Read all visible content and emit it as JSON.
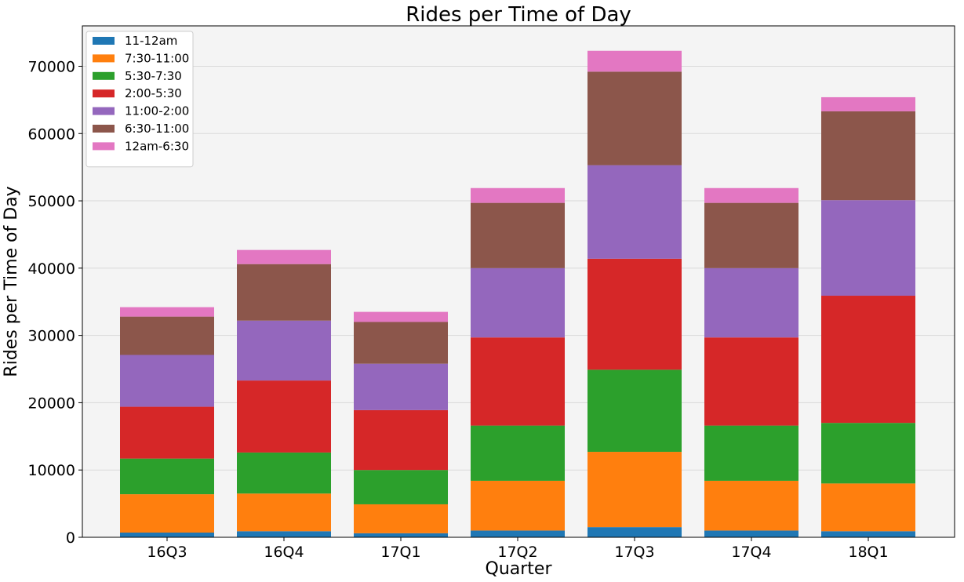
{
  "chart_data": {
    "type": "bar",
    "stacked": true,
    "title": "Rides per Time of Day",
    "xlabel": "Quarter",
    "ylabel": "Rides per Time of Day",
    "ylim": [
      0,
      76000
    ],
    "yticks": [
      0,
      10000,
      20000,
      30000,
      40000,
      50000,
      60000,
      70000
    ],
    "grid": "horizontal",
    "legend_position": "top-left",
    "categories": [
      "16Q3",
      "16Q4",
      "17Q1",
      "17Q2",
      "17Q3",
      "17Q4",
      "18Q1"
    ],
    "series": [
      {
        "name": "11-12am",
        "color": "#1f77b4",
        "values": [
          700,
          900,
          600,
          1000,
          1500,
          1000,
          900
        ]
      },
      {
        "name": "7:30-11:00",
        "color": "#ff7f0e",
        "values": [
          5700,
          5600,
          4300,
          7400,
          11200,
          7400,
          7100
        ]
      },
      {
        "name": "5:30-7:30",
        "color": "#2ca02c",
        "values": [
          5300,
          6100,
          5100,
          8200,
          12200,
          8200,
          9000
        ]
      },
      {
        "name": "2:00-5:30",
        "color": "#d62728",
        "values": [
          7700,
          10700,
          8900,
          13100,
          16500,
          13100,
          18900
        ]
      },
      {
        "name": "11:00-2:00",
        "color": "#9467bd",
        "values": [
          7700,
          8900,
          6900,
          10300,
          13900,
          10300,
          14200
        ]
      },
      {
        "name": "6:30-11:00",
        "color": "#8c564b",
        "values": [
          5700,
          8400,
          6200,
          9700,
          13900,
          9700,
          13200
        ]
      },
      {
        "name": "12am-6:30",
        "color": "#e377c2",
        "values": [
          1400,
          2100,
          1500,
          2200,
          3100,
          2200,
          2100
        ]
      }
    ],
    "plot_background": "#f4f4f4"
  }
}
